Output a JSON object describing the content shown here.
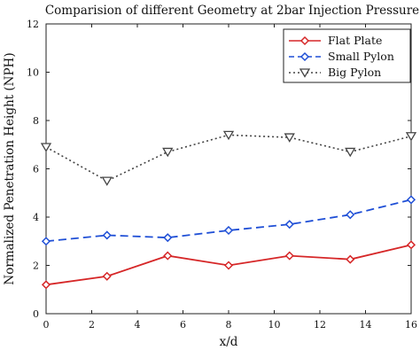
{
  "chart_data": {
    "type": "line",
    "title": "Comparision of different Geometry at 2bar Injection Pressure",
    "xlabel": "x/d",
    "ylabel": "Normalized Penetration Height (NPH)",
    "xlim": [
      0,
      16
    ],
    "ylim": [
      0,
      12
    ],
    "xticks": [
      "0",
      "2",
      "4",
      "6",
      "8",
      "10",
      "12",
      "14",
      "16"
    ],
    "yticks": [
      "0",
      "2",
      "4",
      "6",
      "8",
      "10",
      "12"
    ],
    "x": [
      0,
      2.67,
      5.33,
      8,
      10.67,
      13.33,
      16
    ],
    "grid": false,
    "legend_position": "top-right",
    "series": [
      {
        "name": "Flat Plate",
        "values": [
          1.2,
          1.55,
          2.4,
          2.0,
          2.4,
          2.25,
          2.85
        ],
        "color": "#d62728",
        "line_style": "solid",
        "marker": "diamond"
      },
      {
        "name": "Small Pylon",
        "values": [
          3.0,
          3.25,
          3.15,
          3.45,
          3.7,
          4.1,
          4.72
        ],
        "color": "#1f4fd6",
        "line_style": "dashed",
        "marker": "diamond"
      },
      {
        "name": "Big Pylon",
        "values": [
          6.9,
          5.5,
          6.7,
          7.4,
          7.3,
          6.7,
          7.35
        ],
        "color": "#444444",
        "line_style": "dotted",
        "marker": "triangle-down"
      }
    ]
  }
}
